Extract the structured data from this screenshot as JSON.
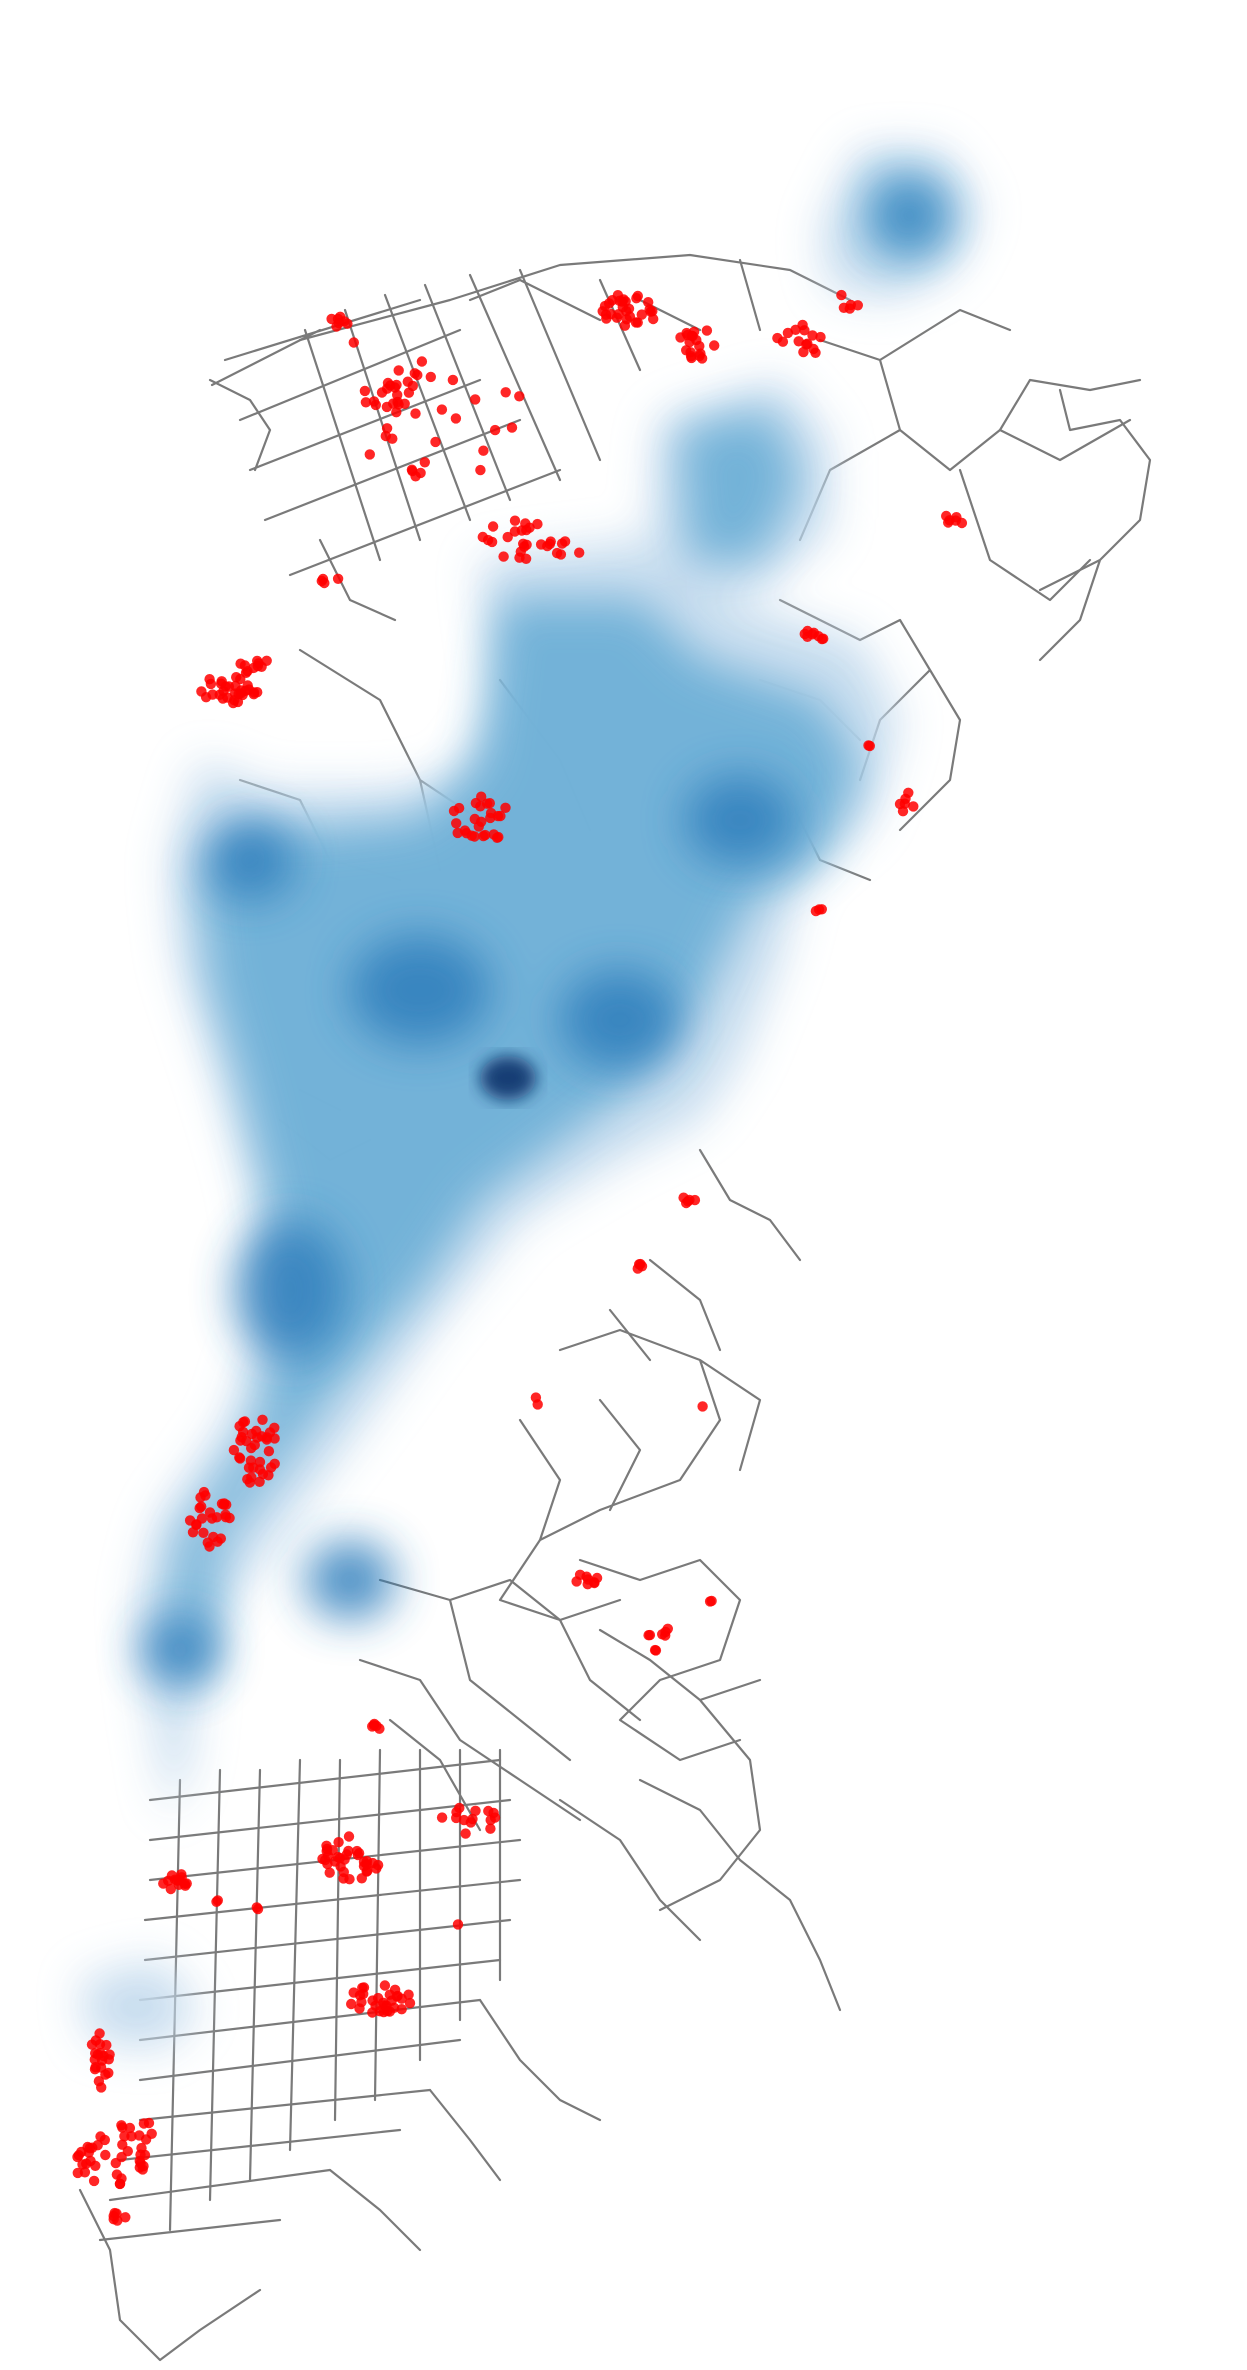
{
  "map": {
    "type": "street-network-with-heat-and-points",
    "colors": {
      "background": "#ffffff",
      "roads": "#7a7a7a",
      "points": "#ff0000",
      "heat_light": "#d6e6f4",
      "heat_mid": "#6aaed6",
      "heat_dark": "#08306b"
    }
  }
}
